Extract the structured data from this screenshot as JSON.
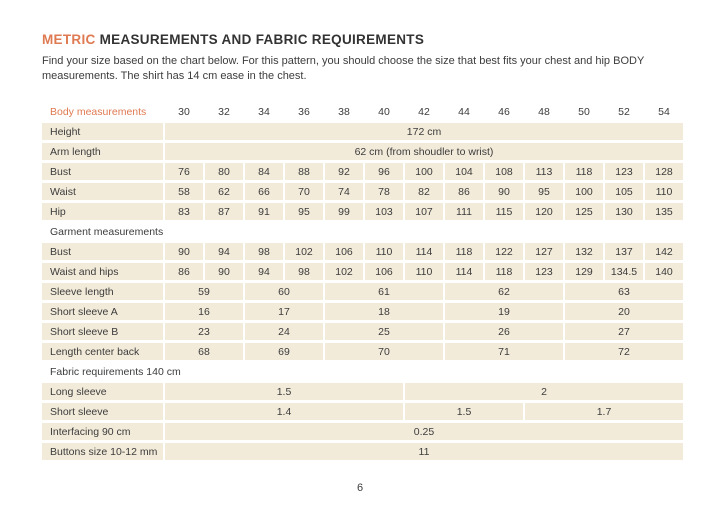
{
  "title": {
    "accent": "METRIC",
    "rest": " MEASUREMENTS AND FABRIC REQUIREMENTS"
  },
  "intro_line1": "Find your size based on the chart below. For this pattern, you should choose the size that best fits your chest and hip BODY",
  "intro_line2": "measurements. The shirt has 14 cm ease in the chest.",
  "page_number": "6",
  "colors": {
    "accent": "#df7a52",
    "cell_background": "#f3ebda",
    "text": "#3c3c3c",
    "page_background": "#ffffff"
  },
  "table": {
    "header": {
      "label": "Body measurements",
      "sizes": [
        "30",
        "32",
        "34",
        "36",
        "38",
        "40",
        "42",
        "44",
        "46",
        "48",
        "50",
        "52",
        "54"
      ]
    },
    "rows": [
      {
        "type": "row",
        "label": "Height",
        "cells": [
          [
            "172 cm",
            13
          ]
        ]
      },
      {
        "type": "row",
        "label": "Arm length",
        "cells": [
          [
            "62 cm (from shoudler to wrist)",
            13
          ]
        ]
      },
      {
        "type": "row",
        "label": "Bust",
        "cells": [
          [
            "76",
            1
          ],
          [
            "80",
            1
          ],
          [
            "84",
            1
          ],
          [
            "88",
            1
          ],
          [
            "92",
            1
          ],
          [
            "96",
            1
          ],
          [
            "100",
            1
          ],
          [
            "104",
            1
          ],
          [
            "108",
            1
          ],
          [
            "113",
            1
          ],
          [
            "118",
            1
          ],
          [
            "123",
            1
          ],
          [
            "128",
            1
          ]
        ]
      },
      {
        "type": "row",
        "label": "Waist",
        "cells": [
          [
            "58",
            1
          ],
          [
            "62",
            1
          ],
          [
            "66",
            1
          ],
          [
            "70",
            1
          ],
          [
            "74",
            1
          ],
          [
            "78",
            1
          ],
          [
            "82",
            1
          ],
          [
            "86",
            1
          ],
          [
            "90",
            1
          ],
          [
            "95",
            1
          ],
          [
            "100",
            1
          ],
          [
            "105",
            1
          ],
          [
            "110",
            1
          ]
        ]
      },
      {
        "type": "row",
        "label": "Hip",
        "cells": [
          [
            "83",
            1
          ],
          [
            "87",
            1
          ],
          [
            "91",
            1
          ],
          [
            "95",
            1
          ],
          [
            "99",
            1
          ],
          [
            "103",
            1
          ],
          [
            "107",
            1
          ],
          [
            "111",
            1
          ],
          [
            "115",
            1
          ],
          [
            "120",
            1
          ],
          [
            "125",
            1
          ],
          [
            "130",
            1
          ],
          [
            "135",
            1
          ]
        ]
      },
      {
        "type": "section",
        "label": "Garment measurements"
      },
      {
        "type": "row",
        "label": "Bust",
        "cells": [
          [
            "90",
            1
          ],
          [
            "94",
            1
          ],
          [
            "98",
            1
          ],
          [
            "102",
            1
          ],
          [
            "106",
            1
          ],
          [
            "110",
            1
          ],
          [
            "114",
            1
          ],
          [
            "118",
            1
          ],
          [
            "122",
            1
          ],
          [
            "127",
            1
          ],
          [
            "132",
            1
          ],
          [
            "137",
            1
          ],
          [
            "142",
            1
          ]
        ]
      },
      {
        "type": "row",
        "label": "Waist and hips",
        "cells": [
          [
            "86",
            1
          ],
          [
            "90",
            1
          ],
          [
            "94",
            1
          ],
          [
            "98",
            1
          ],
          [
            "102",
            1
          ],
          [
            "106",
            1
          ],
          [
            "110",
            1
          ],
          [
            "114",
            1
          ],
          [
            "118",
            1
          ],
          [
            "123",
            1
          ],
          [
            "129",
            1
          ],
          [
            "134.5",
            1
          ],
          [
            "140",
            1
          ]
        ]
      },
      {
        "type": "row",
        "label": "Sleeve length",
        "cells": [
          [
            "59",
            2
          ],
          [
            "60",
            2
          ],
          [
            "61",
            3
          ],
          [
            "62",
            3
          ],
          [
            "63",
            3
          ]
        ]
      },
      {
        "type": "row",
        "label": "Short sleeve A",
        "cells": [
          [
            "16",
            2
          ],
          [
            "17",
            2
          ],
          [
            "18",
            3
          ],
          [
            "19",
            3
          ],
          [
            "20",
            3
          ]
        ]
      },
      {
        "type": "row",
        "label": "Short sleeve B",
        "cells": [
          [
            "23",
            2
          ],
          [
            "24",
            2
          ],
          [
            "25",
            3
          ],
          [
            "26",
            3
          ],
          [
            "27",
            3
          ]
        ]
      },
      {
        "type": "row",
        "label": "Length center back",
        "cells": [
          [
            "68",
            2
          ],
          [
            "69",
            2
          ],
          [
            "70",
            3
          ],
          [
            "71",
            3
          ],
          [
            "72",
            3
          ]
        ]
      },
      {
        "type": "section",
        "label": "Fabric requirements 140 cm"
      },
      {
        "type": "row",
        "label": "Long sleeve",
        "cells": [
          [
            "1.5",
            6
          ],
          [
            "2",
            7
          ]
        ]
      },
      {
        "type": "row",
        "label": "Short sleeve",
        "cells": [
          [
            "1.4",
            6
          ],
          [
            "1.5",
            3
          ],
          [
            "1.7",
            4
          ]
        ]
      },
      {
        "type": "row",
        "label": "Interfacing 90 cm",
        "cells": [
          [
            "0.25",
            13
          ]
        ]
      },
      {
        "type": "row",
        "label": "Buttons size 10-12 mm",
        "cells": [
          [
            "11",
            13
          ]
        ]
      }
    ]
  }
}
